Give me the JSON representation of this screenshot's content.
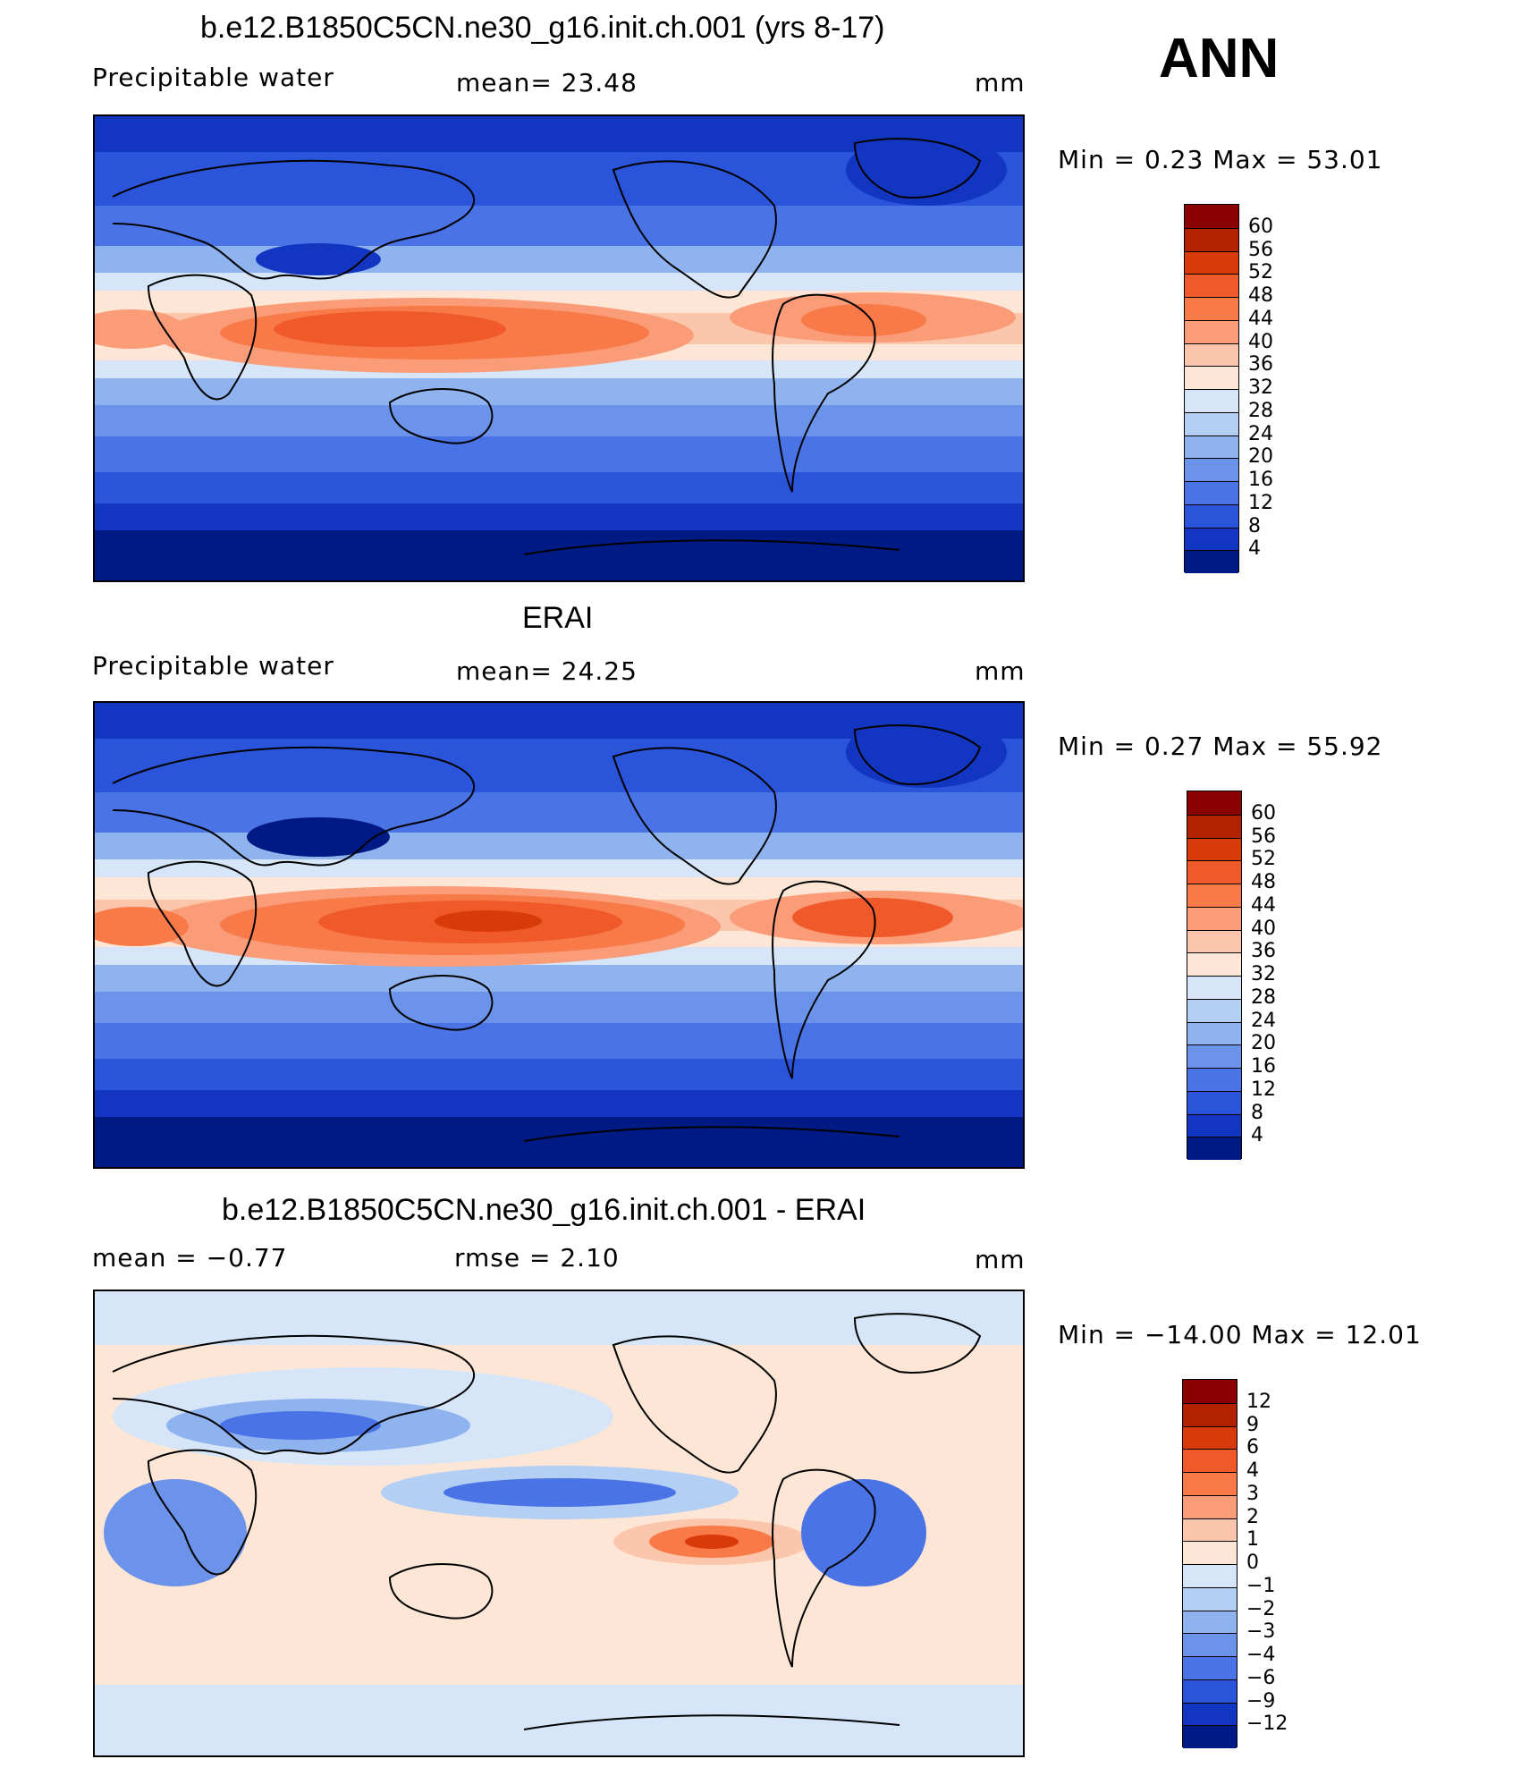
{
  "season": "ANN",
  "panels": [
    {
      "title": "b.e12.B1850C5CN.ne30_g16.init.ch.001 (yrs 8-17)",
      "left_label": "Precipitable  water",
      "center_label": "mean=   23.48",
      "unit": "mm",
      "minmax": "Min  =     0.23  Max  =    53.01",
      "colorbar_labels": [
        "60",
        "56",
        "52",
        "48",
        "44",
        "40",
        "36",
        "32",
        "28",
        "24",
        "20",
        "16",
        "12",
        "8",
        "4"
      ],
      "colors": [
        "#8b0000",
        "#b22200",
        "#d83a0a",
        "#f05a2a",
        "#f77a48",
        "#fa9c78",
        "#fcc6ac",
        "#fde6d6",
        "#d6e6f8",
        "#b4cff4",
        "#8fb3ef",
        "#6b93ea",
        "#4a74e6",
        "#2a55db",
        "#1336c2",
        "#001a85"
      ]
    },
    {
      "title": "ERAI",
      "left_label": "Precipitable  water",
      "center_label": "mean=   24.25",
      "unit": "mm",
      "minmax": "Min  =     0.27  Max  =    55.92",
      "colorbar_labels": [
        "60",
        "56",
        "52",
        "48",
        "44",
        "40",
        "36",
        "32",
        "28",
        "24",
        "20",
        "16",
        "12",
        "8",
        "4"
      ],
      "colors": [
        "#8b0000",
        "#b22200",
        "#d83a0a",
        "#f05a2a",
        "#f77a48",
        "#fa9c78",
        "#fcc6ac",
        "#fde6d6",
        "#d6e6f8",
        "#b4cff4",
        "#8fb3ef",
        "#6b93ea",
        "#4a74e6",
        "#2a55db",
        "#1336c2",
        "#001a85"
      ]
    },
    {
      "title": "b.e12.B1850C5CN.ne30_g16.init.ch.001 - ERAI",
      "left_label": "mean  =    −0.77",
      "center_label": "rmse  =     2.10",
      "unit": "mm",
      "minmax": "Min  =  −14.00  Max  =    12.01",
      "colorbar_labels": [
        "12",
        "9",
        "6",
        "4",
        "3",
        "2",
        "1",
        "0",
        "−1",
        "−2",
        "−3",
        "−4",
        "−6",
        "−9",
        "−12"
      ],
      "colors": [
        "#8b0000",
        "#b22200",
        "#d83a0a",
        "#f05a2a",
        "#f77a48",
        "#fa9c78",
        "#fcc6ac",
        "#fde6d6",
        "#d6e6f8",
        "#b4cff4",
        "#8fb3ef",
        "#6b93ea",
        "#4a74e6",
        "#2a55db",
        "#1336c2",
        "#001a85"
      ]
    }
  ]
}
